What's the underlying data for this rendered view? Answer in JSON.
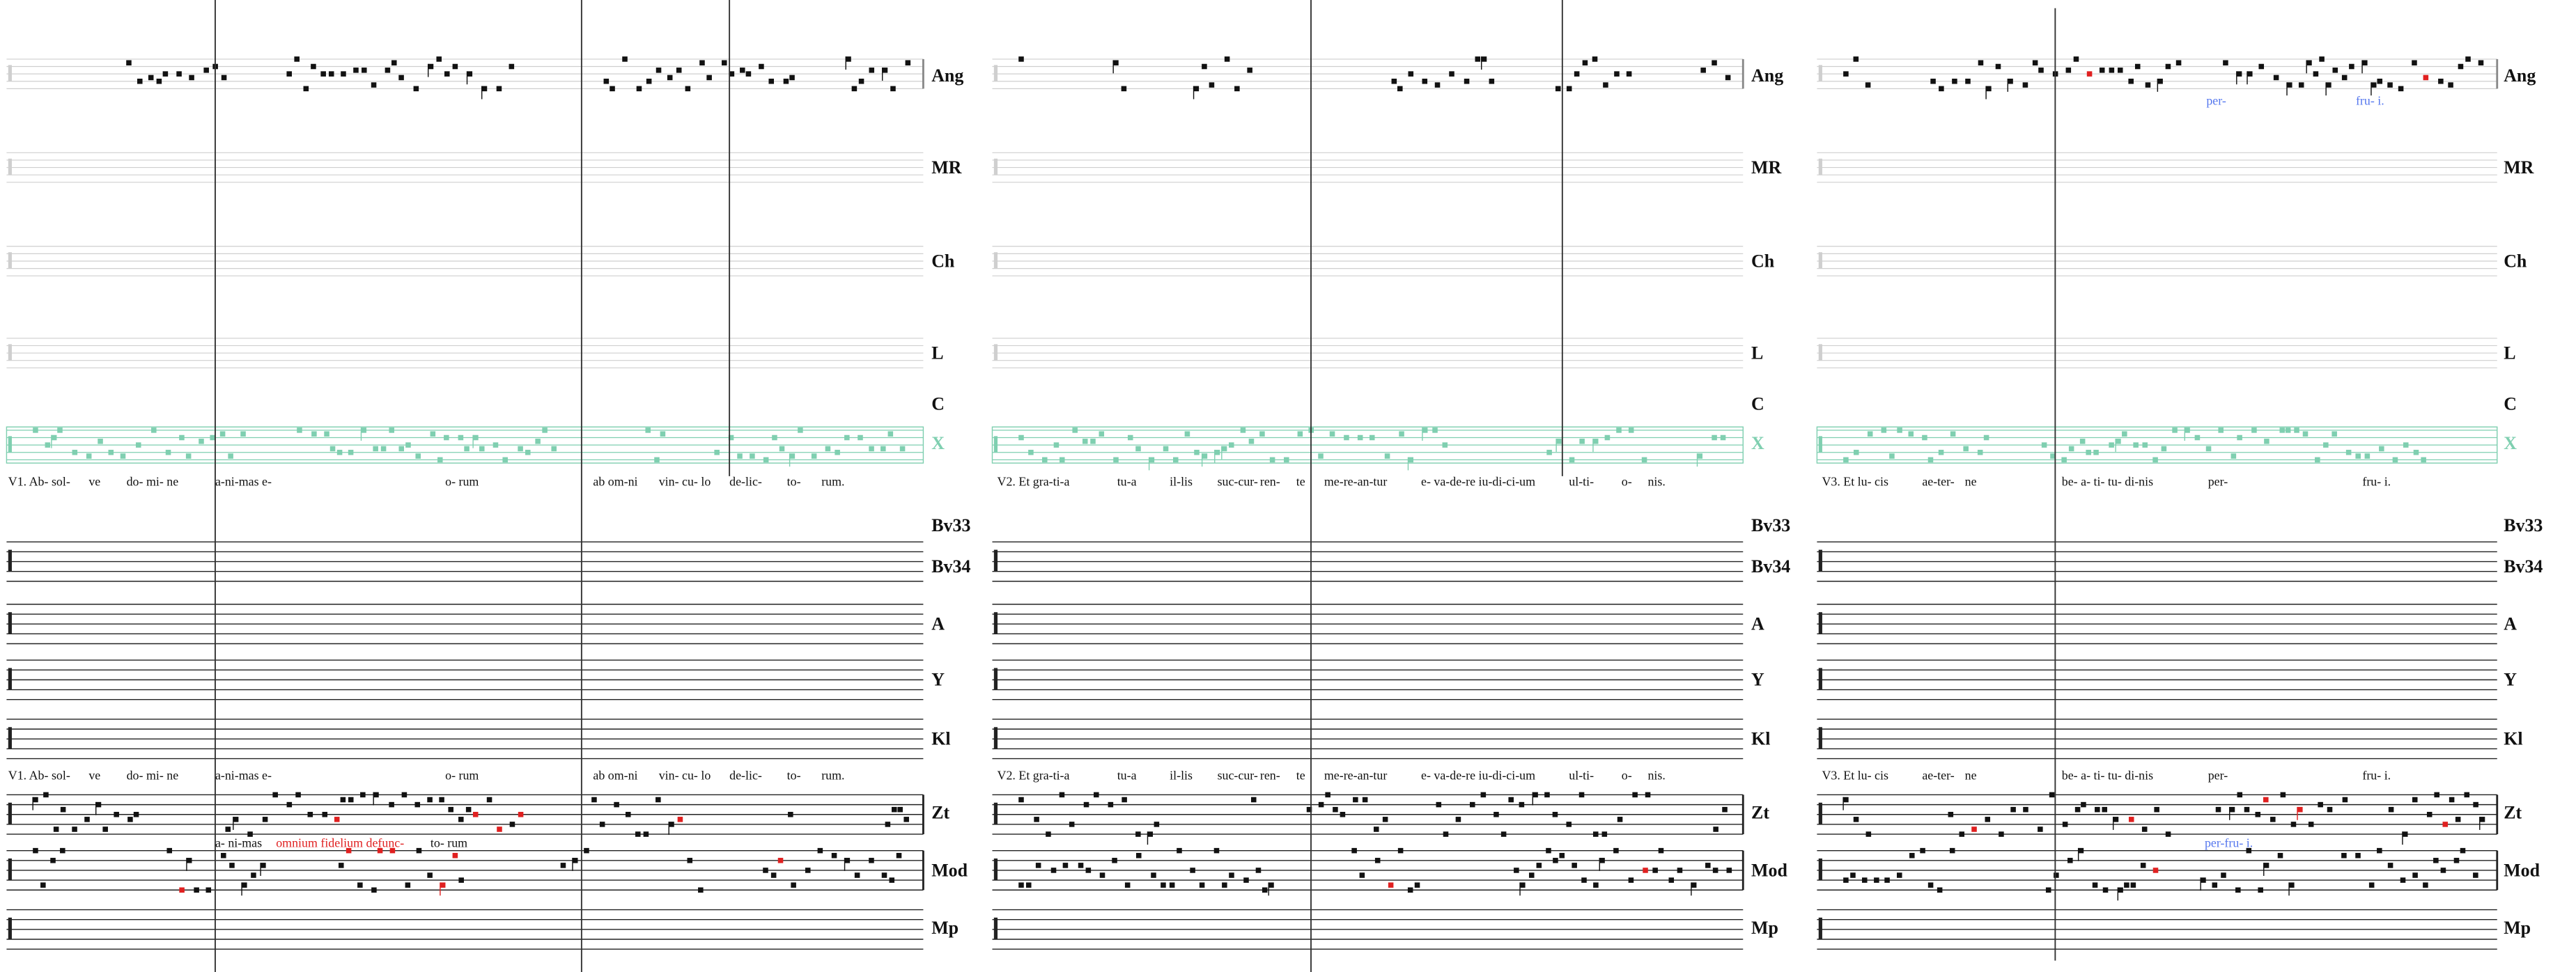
{
  "staff_labels_top": [
    "Ang",
    "MR",
    "Ch",
    "L",
    "C",
    "X"
  ],
  "staff_labels_bottom": [
    "Bv33",
    "Bv34",
    "A",
    "Y",
    "Kl",
    "Zt",
    "Mod",
    "Mp"
  ],
  "columns": [
    {
      "lyrics": [
        "V1. Ab- sol-",
        "ve",
        "do- mi- ne",
        "a-ni-mas e-",
        "o- rum",
        "ab om-ni",
        "vin- cu- lo",
        "de-lic-",
        "to-",
        "rum."
      ],
      "lyrics_lower": [
        "V1. Ab- sol-",
        "ve",
        "do- mi- ne",
        "a-ni-mas e-",
        "o- rum",
        "ab om-ni",
        "vin- cu- lo",
        "de-lic-",
        "to-",
        "rum."
      ],
      "mod_text": [
        "a- ni-mas",
        "omnium fidelium defunc-",
        "to- rum"
      ]
    },
    {
      "lyrics": [
        "V2. Et gra-ti-a",
        "tu-a",
        "il-lis",
        "suc-cur-",
        "ren-",
        "te",
        "me-re-an-tur",
        "e- va-de-re iu-di-ci-um",
        "ul-ti-",
        "o-",
        "nis."
      ],
      "lyrics_lower": [
        "V2. Et gra-ti-a",
        "tu-a",
        "il-lis",
        "suc-cur-",
        "ren-",
        "te",
        "me-re-an-tur",
        "e- va-de-re iu-di-ci-um",
        "ul-ti-",
        "o-",
        "nis."
      ]
    },
    {
      "lyrics": [
        "V3. Et lu- cis",
        "ae-ter-",
        "ne",
        "be- a- ti- tu- di-nis",
        "per-",
        "fru- i."
      ],
      "lyrics_lower": [
        "V3. Et lu- cis",
        "ae-ter-",
        "ne",
        "be- a- ti- tu- di-nis",
        "per-",
        "fru- i."
      ],
      "ang_text": [
        "per-",
        "fru- i."
      ],
      "mod_text": [
        "per-fru- i."
      ]
    }
  ]
}
